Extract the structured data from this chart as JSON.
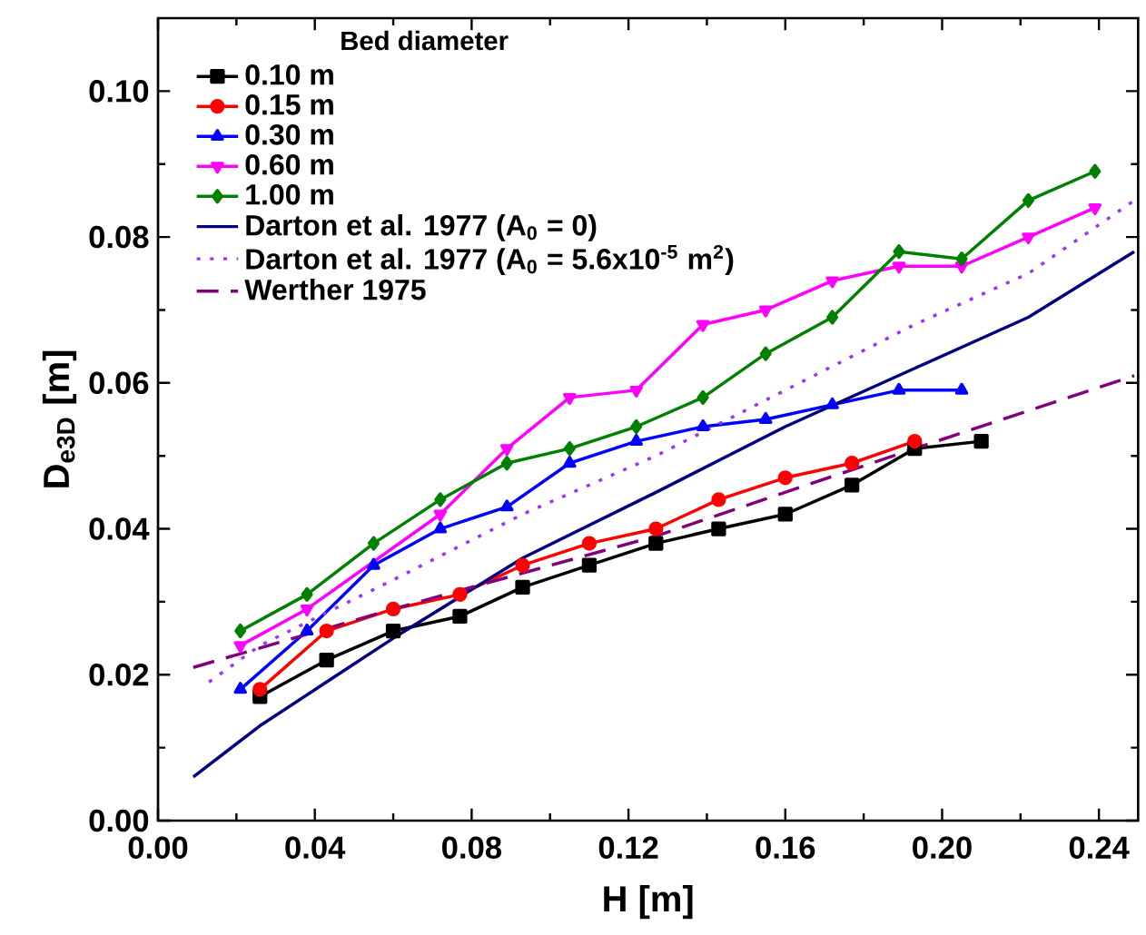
{
  "chart_data": {
    "type": "line",
    "xlabel": "H [m]",
    "ylabel": "D$_{e3D}$ [m]",
    "legend_title": "Bed diameter",
    "xlim": [
      0,
      0.25
    ],
    "ylim": [
      0,
      0.11
    ],
    "xticks": [
      {
        "value": 0,
        "label": "0.00"
      },
      0.04,
      0.08,
      0.12,
      0.16,
      {
        "value": 0.2,
        "label": "0.20"
      },
      0.24
    ],
    "yticks": [
      {
        "value": 0,
        "label": "0.00"
      },
      0.02,
      0.04,
      0.06,
      0.08,
      {
        "value": 0.1,
        "label": "0.10"
      }
    ],
    "grid": false,
    "legend": "top left",
    "series": [
      {
        "name": "0.10 m",
        "color": "#000000",
        "marker": "square",
        "line_style": "solid",
        "x": [
          0.026,
          0.043,
          0.06,
          0.077,
          0.093,
          0.11,
          0.127,
          0.143,
          0.16,
          0.177,
          0.193,
          0.21
        ],
        "values": [
          0.017,
          0.022,
          0.026,
          0.028,
          0.032,
          0.035,
          0.038,
          0.04,
          0.042,
          0.046,
          0.051,
          0.052
        ]
      },
      {
        "name": "0.15 m",
        "color": "#ff0000",
        "marker": "circle",
        "line_style": "solid",
        "x": [
          0.026,
          0.043,
          0.06,
          0.077,
          0.093,
          0.11,
          0.127,
          0.143,
          0.16,
          0.177,
          0.193
        ],
        "values": [
          0.018,
          0.026,
          0.029,
          0.031,
          0.035,
          0.038,
          0.04,
          0.044,
          0.047,
          0.049,
          0.052
        ]
      },
      {
        "name": "0.30 m",
        "color": "#0000ff",
        "marker": "triangle",
        "line_style": "solid",
        "x": [
          0.021,
          0.038,
          0.055,
          0.072,
          0.089,
          0.105,
          0.122,
          0.139,
          0.155,
          0.172,
          0.189,
          0.205
        ],
        "values": [
          0.018,
          0.026,
          0.035,
          0.04,
          0.043,
          0.049,
          0.052,
          0.054,
          0.055,
          0.057,
          0.059,
          0.059
        ]
      },
      {
        "name": "0.60 m",
        "color": "#ff00ff",
        "marker": "triangle",
        "line_style": "solid",
        "x": [
          0.021,
          0.038,
          0.055,
          0.072,
          0.089,
          0.105,
          0.122,
          0.139,
          0.155,
          0.172,
          0.189,
          0.205,
          0.222,
          0.239
        ],
        "values": [
          0.024,
          0.029,
          null,
          0.042,
          0.051,
          0.058,
          0.059,
          0.068,
          0.07,
          0.074,
          0.076,
          0.076,
          0.08,
          0.084
        ]
      },
      {
        "name": "1.00 m",
        "color": "#008000",
        "marker": "diamond",
        "line_style": "solid",
        "x": [
          0.021,
          0.038,
          0.055,
          0.072,
          0.089,
          0.105,
          0.122,
          0.139,
          0.155,
          0.172,
          0.189,
          0.205,
          0.222,
          0.239
        ],
        "values": [
          0.026,
          0.031,
          0.038,
          0.044,
          0.049,
          0.051,
          0.054,
          0.058,
          0.064,
          0.069,
          0.078,
          0.077,
          0.085,
          0.089
        ]
      },
      {
        "name": "Darton et al. 1977 (A$_{0}$ = 0)",
        "color": "#000080",
        "marker": "none",
        "line_style": "solid",
        "x": [
          0.009,
          0.026,
          0.043,
          0.06,
          0.093,
          0.127,
          0.16,
          0.193,
          0.222,
          0.249
        ],
        "values": [
          0.006,
          0.013,
          0.019,
          0.025,
          0.036,
          0.045,
          0.054,
          0.062,
          0.069,
          0.078
        ]
      },
      {
        "name": "Darton et al. 1977 (A$_{0}$ = 5.6x10$^{-5}$ m$^{2}$)",
        "color": "#9933ff",
        "marker": "none",
        "line_style": "dotted",
        "x": [
          0.013,
          0.026,
          0.06,
          0.093,
          0.127,
          0.16,
          0.193,
          0.222,
          0.249
        ],
        "values": [
          0.019,
          0.024,
          0.033,
          0.042,
          0.05,
          0.059,
          0.068,
          0.075,
          0.085
        ]
      },
      {
        "name": "Werther 1975",
        "color": "#800080",
        "marker": "none",
        "line_style": "dashed",
        "x": [
          0.009,
          0.06,
          0.127,
          0.193,
          0.249
        ],
        "values": [
          0.021,
          0.029,
          0.039,
          0.051,
          0.061
        ]
      }
    ]
  }
}
